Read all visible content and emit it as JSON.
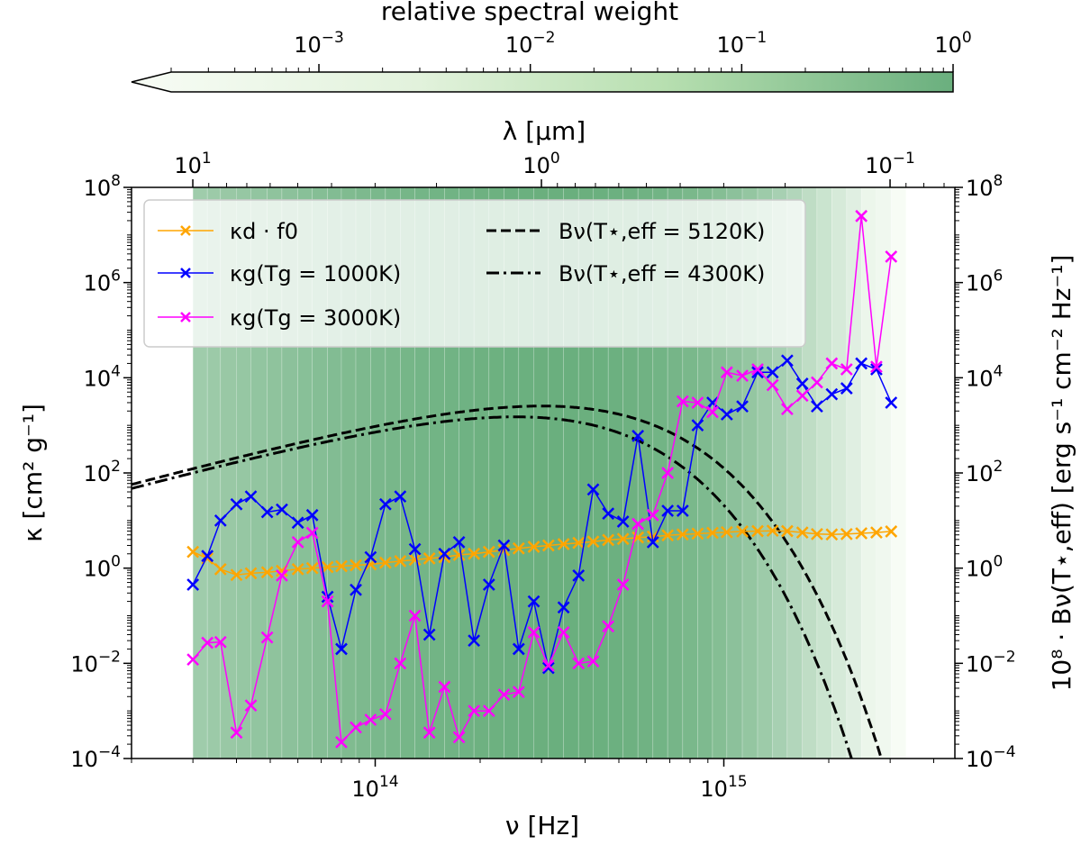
{
  "chart_data": {
    "type": "line",
    "x_scale": "log",
    "y_scale": "log",
    "xlabel": "ν [Hz]",
    "xlim_hz": [
      20000000000000.0,
      4600000000000000.0
    ],
    "xticks": [
      {
        "value": 100000000000000.0,
        "base": "10",
        "exp": "14"
      },
      {
        "value": 1000000000000000.0,
        "base": "10",
        "exp": "15"
      }
    ],
    "top_axis": {
      "label": "λ [μm]",
      "ticks_um": [
        {
          "value": 10,
          "base": "10",
          "exp": "1"
        },
        {
          "value": 1,
          "base": "10",
          "exp": "0"
        },
        {
          "value": 0.1,
          "base": "10",
          "exp": "−1"
        }
      ]
    },
    "ylabel_left": "κ [cm² g⁻¹]",
    "ylabel_right": "10⁸ · Bν(T⋆,eff) [erg s⁻¹ cm⁻² Hz⁻¹]",
    "ylim": [
      0.0001,
      100000000.0
    ],
    "yticks": [
      {
        "value": 0.0001,
        "base": "10",
        "exp": "−4"
      },
      {
        "value": 0.01,
        "base": "10",
        "exp": "−2"
      },
      {
        "value": 1.0,
        "base": "10",
        "exp": "0"
      },
      {
        "value": 100.0,
        "base": "10",
        "exp": "2"
      },
      {
        "value": 10000.0,
        "base": "10",
        "exp": "4"
      },
      {
        "value": 1000000.0,
        "base": "10",
        "exp": "6"
      },
      {
        "value": 100000000.0,
        "base": "10",
        "exp": "8"
      }
    ],
    "colorbar": {
      "label": "relative spectral weight",
      "scale": "log",
      "range": [
        0.0002,
        1
      ],
      "ticks": [
        {
          "value": 0.001,
          "base": "10",
          "exp": "−3"
        },
        {
          "value": 0.01,
          "base": "10",
          "exp": "−2"
        },
        {
          "value": 0.1,
          "base": "10",
          "exp": "−1"
        },
        {
          "value": 1,
          "base": "10",
          "exp": "0"
        }
      ],
      "color_low": "#f7fcf5",
      "color_high": "#6aaf7e"
    },
    "weight_bands": {
      "x_hz": [
        30000000000000.0,
        33000000000000.0,
        36000000000000.0,
        40000000000000.0,
        44000000000000.0,
        49000000000000.0,
        54000000000000.0,
        60000000000000.0,
        66000000000000.0,
        73000000000000.0,
        80000000000000.0,
        88000000000000.0,
        97000000000000.0,
        107000000000000.0,
        118000000000000.0,
        130000000000000.0,
        143000000000000.0,
        158000000000000.0,
        174000000000000.0,
        192000000000000.0,
        212000000000000.0,
        234000000000000.0,
        258000000000000.0,
        285000000000000.0,
        314000000000000.0,
        347000000000000.0,
        383000000000000.0,
        422000000000000.0,
        466000000000000.0,
        514000000000000.0,
        567000000000000.0,
        626000000000000.0,
        690000000000000.0,
        762000000000000.0,
        841000000000000.0,
        928000000000000.0,
        1020000000000000.0,
        1130000000000000.0,
        1250000000000000.0,
        1380000000000000.0,
        1520000000000000.0,
        1680000000000000.0,
        1850000000000000.0,
        2040000000000000.0,
        2250000000000000.0,
        2480000000000000.0,
        2740000000000000.0,
        3020000000000000.0
      ],
      "weights": [
        0.04,
        0.05,
        0.06,
        0.07,
        0.09,
        0.11,
        0.13,
        0.16,
        0.19,
        0.23,
        0.27,
        0.32,
        0.37,
        0.42,
        0.48,
        0.54,
        0.6,
        0.66,
        0.72,
        0.78,
        0.84,
        0.89,
        0.94,
        0.97,
        1.0,
        0.99,
        0.97,
        0.93,
        0.87,
        0.79,
        0.7,
        0.6,
        0.49,
        0.39,
        0.29,
        0.2,
        0.13,
        0.08,
        0.045,
        0.025,
        0.013,
        0.006,
        0.003,
        0.0015,
        0.0008,
        0.0004,
        0.0003,
        0.0002
      ]
    },
    "series": [
      {
        "name": "kappa_d_f0",
        "legend": "κd · f0",
        "color": "#ffa500",
        "marker": "x",
        "style": "solid",
        "x": [
          30000000000000.0,
          33000000000000.0,
          36000000000000.0,
          40000000000000.0,
          44000000000000.0,
          49000000000000.0,
          54000000000000.0,
          60000000000000.0,
          66000000000000.0,
          73000000000000.0,
          80000000000000.0,
          88000000000000.0,
          97000000000000.0,
          107000000000000.0,
          118000000000000.0,
          130000000000000.0,
          143000000000000.0,
          158000000000000.0,
          174000000000000.0,
          192000000000000.0,
          212000000000000.0,
          234000000000000.0,
          258000000000000.0,
          285000000000000.0,
          314000000000000.0,
          347000000000000.0,
          383000000000000.0,
          422000000000000.0,
          466000000000000.0,
          514000000000000.0,
          567000000000000.0,
          626000000000000.0,
          690000000000000.0,
          762000000000000.0,
          841000000000000.0,
          928000000000000.0,
          1020000000000000.0,
          1130000000000000.0,
          1250000000000000.0,
          1380000000000000.0,
          1520000000000000.0,
          1680000000000000.0,
          1850000000000000.0,
          2040000000000000.0,
          2250000000000000.0,
          2480000000000000.0,
          2740000000000000.0,
          3020000000000000.0
        ],
        "y": [
          2.2,
          1.6,
          0.95,
          0.72,
          0.78,
          0.82,
          0.88,
          0.95,
          1.0,
          1.05,
          1.1,
          1.15,
          1.2,
          1.3,
          1.4,
          1.5,
          1.6,
          1.7,
          1.9,
          2.0,
          2.2,
          2.4,
          2.6,
          2.8,
          3.0,
          3.2,
          3.4,
          3.6,
          3.9,
          4.1,
          4.4,
          4.6,
          4.9,
          5.1,
          5.3,
          5.5,
          5.7,
          5.9,
          6.0,
          6.1,
          6.0,
          5.6,
          5.2,
          5.1,
          5.2,
          5.4,
          5.6,
          5.9
        ]
      },
      {
        "name": "kappa_g_1000",
        "legend": "κg(Tg = 1000K)",
        "color": "#0000ff",
        "marker": "x",
        "style": "solid",
        "x": [
          30000000000000.0,
          33000000000000.0,
          36000000000000.0,
          40000000000000.0,
          44000000000000.0,
          49000000000000.0,
          54000000000000.0,
          60000000000000.0,
          66000000000000.0,
          73000000000000.0,
          80000000000000.0,
          88000000000000.0,
          97000000000000.0,
          107000000000000.0,
          118000000000000.0,
          130000000000000.0,
          143000000000000.0,
          158000000000000.0,
          174000000000000.0,
          192000000000000.0,
          212000000000000.0,
          234000000000000.0,
          258000000000000.0,
          285000000000000.0,
          314000000000000.0,
          347000000000000.0,
          383000000000000.0,
          422000000000000.0,
          466000000000000.0,
          514000000000000.0,
          567000000000000.0,
          626000000000000.0,
          690000000000000.0,
          762000000000000.0,
          841000000000000.0,
          928000000000000.0,
          1020000000000000.0,
          1130000000000000.0,
          1250000000000000.0,
          1380000000000000.0,
          1520000000000000.0,
          1680000000000000.0,
          1850000000000000.0,
          2040000000000000.0,
          2250000000000000.0,
          2480000000000000.0,
          2740000000000000.0,
          3020000000000000.0
        ],
        "y": [
          0.45,
          1.8,
          10,
          22,
          32,
          15,
          17,
          9,
          13,
          0.25,
          0.02,
          0.35,
          1.7,
          22,
          32,
          2.5,
          0.04,
          2.0,
          3.5,
          0.03,
          0.45,
          3.0,
          0.02,
          0.2,
          0.008,
          0.15,
          0.7,
          45,
          14,
          9.5,
          600,
          3.5,
          16,
          16,
          1000,
          3000,
          1700,
          2500,
          13000,
          13000,
          23000,
          7500,
          2500,
          4500,
          6000,
          20000,
          15000,
          3000
        ]
      },
      {
        "name": "kappa_g_3000",
        "legend": "κg(Tg = 3000K)",
        "color": "#ff00ff",
        "marker": "x",
        "style": "solid",
        "x": [
          30000000000000.0,
          33000000000000.0,
          36000000000000.0,
          40000000000000.0,
          44000000000000.0,
          49000000000000.0,
          54000000000000.0,
          60000000000000.0,
          66000000000000.0,
          73000000000000.0,
          80000000000000.0,
          88000000000000.0,
          97000000000000.0,
          107000000000000.0,
          118000000000000.0,
          130000000000000.0,
          143000000000000.0,
          158000000000000.0,
          174000000000000.0,
          192000000000000.0,
          212000000000000.0,
          234000000000000.0,
          258000000000000.0,
          285000000000000.0,
          314000000000000.0,
          347000000000000.0,
          383000000000000.0,
          422000000000000.0,
          466000000000000.0,
          514000000000000.0,
          567000000000000.0,
          626000000000000.0,
          690000000000000.0,
          762000000000000.0,
          841000000000000.0,
          928000000000000.0,
          1020000000000000.0,
          1130000000000000.0,
          1250000000000000.0,
          1380000000000000.0,
          1520000000000000.0,
          1680000000000000.0,
          1850000000000000.0,
          2040000000000000.0,
          2250000000000000.0,
          2480000000000000.0,
          2740000000000000.0,
          3020000000000000.0
        ],
        "y": [
          0.012,
          0.027,
          0.028,
          0.00035,
          0.0013,
          0.035,
          0.7,
          3.5,
          5.5,
          0.2,
          0.00022,
          0.00045,
          0.00065,
          0.00085,
          0.01,
          0.1,
          0.00035,
          0.0032,
          0.00028,
          0.001,
          0.001,
          0.0022,
          0.0025,
          0.045,
          0.009,
          0.045,
          0.01,
          0.011,
          0.06,
          0.45,
          8.5,
          13,
          100,
          3200,
          3000,
          1900,
          13000,
          11000,
          15000,
          7000,
          2200,
          4200,
          8000,
          20000,
          15000,
          25000000,
          17000,
          3500000
        ]
      },
      {
        "name": "planck_5120",
        "legend": "Bν(T⋆,eff = 5120K)",
        "color": "#000000",
        "marker": "none",
        "style": "dashed",
        "temperature_k": 5120,
        "scale_factor": 100000000.0
      },
      {
        "name": "planck_4300",
        "legend": "Bν(T⋆,eff = 4300K)",
        "color": "#000000",
        "marker": "none",
        "style": "dashdot",
        "temperature_k": 4300,
        "scale_factor": 100000000.0
      }
    ]
  }
}
